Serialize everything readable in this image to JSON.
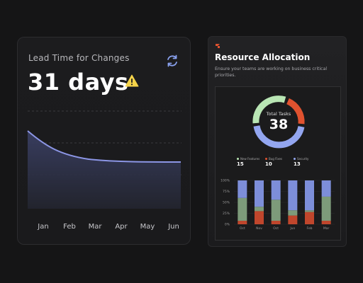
{
  "lead_time": {
    "title": "Lead Time for Changes",
    "value": "31 days",
    "months": [
      "Jan",
      "Feb",
      "Mar",
      "Apr",
      "May",
      "Jun"
    ],
    "icons": {
      "refresh": "refresh-icon",
      "warning": "warning-icon"
    },
    "colors": {
      "line": "#8c96e6",
      "warning": "#f5d34a",
      "refresh": "#8aa2f0"
    }
  },
  "resource_allocation": {
    "title": "Resource Allocation",
    "subtitle": "Ensure your teams are working on business critical priorities.",
    "total_label": "Total Tasks",
    "total_value": "38",
    "legend": [
      {
        "label": "New Features",
        "value": "15",
        "color": "#b9e6b4"
      },
      {
        "label": "Bug Fixes",
        "value": "10",
        "color": "#e0522f"
      },
      {
        "label": "Security",
        "value": "13",
        "color": "#93a6f0"
      }
    ],
    "colors": {
      "logo": "#e0522f"
    }
  },
  "chart_data": {
    "type": "bar",
    "stacked": true,
    "categories": [
      "Oct",
      "Nov",
      "Oct",
      "Jun",
      "Feb",
      "Mar"
    ],
    "y_ticks": [
      "0%",
      "25%",
      "50%",
      "75%",
      "100%"
    ],
    "ylim": [
      0,
      100
    ],
    "series": [
      {
        "color": "#c0462c",
        "values": [
          8,
          30,
          8,
          20,
          28,
          8
        ]
      },
      {
        "color": "#7d9b7a",
        "values": [
          52,
          10,
          48,
          12,
          4,
          55
        ]
      },
      {
        "color": "#7d8ed9",
        "values": [
          40,
          60,
          44,
          68,
          68,
          37
        ]
      }
    ]
  }
}
